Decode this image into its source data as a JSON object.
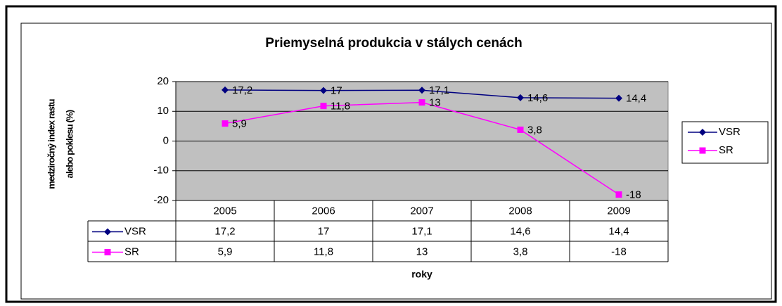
{
  "chart_data": {
    "type": "line",
    "title": "Priemyselná produkcia v stálych cenách",
    "y_label": [
      "medziročný index rastu",
      "alebo poklesu (%)"
    ],
    "x_label": "roky",
    "categories": [
      "2005",
      "2006",
      "2007",
      "2008",
      "2009"
    ],
    "series": [
      {
        "name": "VSR",
        "color": "#000080",
        "marker": "diamond",
        "values": [
          17.2,
          17,
          17.1,
          14.6,
          14.4
        ],
        "value_labels": [
          "17,2",
          "17",
          "17,1",
          "14,6",
          "14,4"
        ]
      },
      {
        "name": "SR",
        "color": "#ff00ff",
        "marker": "square",
        "values": [
          5.9,
          11.8,
          13,
          3.8,
          -18
        ],
        "value_labels": [
          "5,9",
          "11,8",
          "13",
          "3,8",
          "-18"
        ]
      }
    ],
    "ylim": [
      -20,
      20
    ],
    "yticks": [
      20,
      10,
      0,
      -10,
      -20
    ],
    "grid": true,
    "legend": "right",
    "data_table": true
  }
}
